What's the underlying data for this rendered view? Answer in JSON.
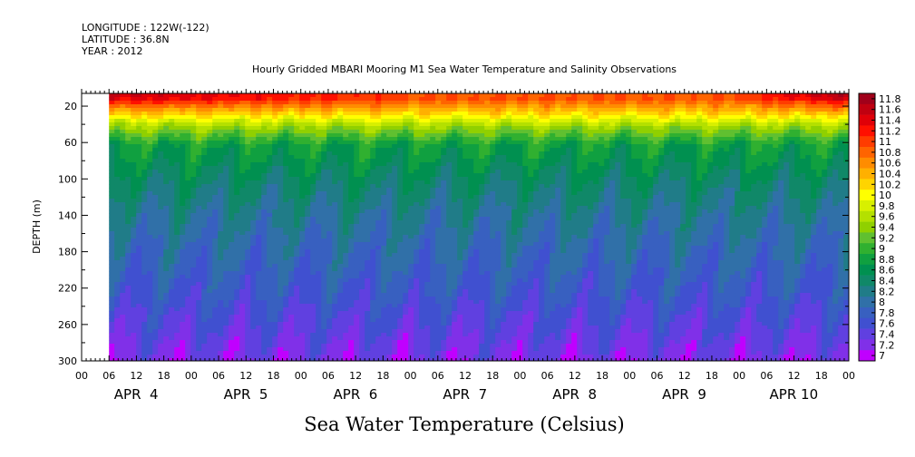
{
  "header": {
    "longitude": "LONGITUDE : 122W(-122)",
    "latitude": "LATITUDE : 36.8N",
    "year": "YEAR : 2012"
  },
  "chart_data": {
    "type": "heatmap",
    "title": "Hourly Gridded MBARI Mooring M1 Sea Water Temperature and Salinity Observations",
    "xlabel_caption": "Sea Water Temperature (Celsius)",
    "ylabel": "DEPTH (m)",
    "y_ticks": [
      20,
      60,
      100,
      140,
      180,
      220,
      260,
      300
    ],
    "ylim": [
      6,
      300
    ],
    "hour_ticks": [
      "00",
      "06",
      "12",
      "18",
      "00",
      "06",
      "12",
      "18",
      "00",
      "06",
      "12",
      "18",
      "00",
      "06",
      "12",
      "18",
      "00",
      "06",
      "12",
      "18",
      "00",
      "06",
      "12",
      "18",
      "00",
      "06",
      "12",
      "18",
      "00"
    ],
    "day_labels": [
      "APR  4",
      "APR  5",
      "APR  6",
      "APR  7",
      "APR  8",
      "APR  9",
      "APR 10"
    ],
    "data_start_hour": 6,
    "colorbar_levels": [
      "11.8",
      "11.6",
      "11.4",
      "11.2",
      "11",
      "10.8",
      "10.6",
      "10.4",
      "10.2",
      "10",
      "9.8",
      "9.6",
      "9.4",
      "9.2",
      "9",
      "8.8",
      "8.6",
      "8.4",
      "8.2",
      "8",
      "7.8",
      "7.6",
      "7.4",
      "7.2",
      "7"
    ],
    "colorbar_colors": [
      "#a0001a",
      "#c00010",
      "#e00008",
      "#ff1000",
      "#ff3c00",
      "#ff6400",
      "#ff8c00",
      "#ffb000",
      "#ffd400",
      "#ffff00",
      "#d8f000",
      "#b4e000",
      "#90d000",
      "#60c030",
      "#30b030",
      "#10a040",
      "#009050",
      "#108868",
      "#207c88",
      "#3070a8",
      "#3860c0",
      "#4050d0",
      "#6040e0",
      "#8030e8",
      "#c000ff"
    ],
    "temperature_profile": [
      {
        "depth": 10,
        "surface_range": [
          10.4,
          11.8
        ]
      },
      {
        "depth": 40,
        "value": 9.6
      },
      {
        "depth": 60,
        "value": 8.9
      },
      {
        "depth": 100,
        "value": 8.5
      },
      {
        "depth": 140,
        "value": 8.2
      },
      {
        "depth": 180,
        "value": 8.0
      },
      {
        "depth": 220,
        "value": 7.8
      },
      {
        "depth": 260,
        "value": 7.55
      },
      {
        "depth": 300,
        "value": 7.3
      }
    ]
  }
}
